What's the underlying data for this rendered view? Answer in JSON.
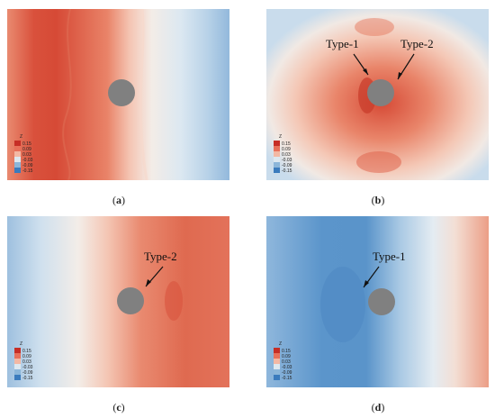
{
  "legend": {
    "title": "Z",
    "levels": [
      "0.15",
      "0.09",
      "0.03",
      "-0.03",
      "-0.09",
      "-0.15"
    ],
    "colors": [
      "#c62e26",
      "#e8705a",
      "#f3b8a4",
      "#dde8f0",
      "#8cb6d9",
      "#3b7bbd"
    ]
  },
  "panels": [
    {
      "label": "a",
      "theme": "a",
      "annotations": []
    },
    {
      "label": "b",
      "theme": "b",
      "annotations": [
        "Type-1",
        "Type-2"
      ]
    },
    {
      "label": "c",
      "theme": "c",
      "annotations": [
        "Type-2"
      ]
    },
    {
      "label": "d",
      "theme": "d",
      "annotations": [
        "Type-1"
      ]
    }
  ]
}
